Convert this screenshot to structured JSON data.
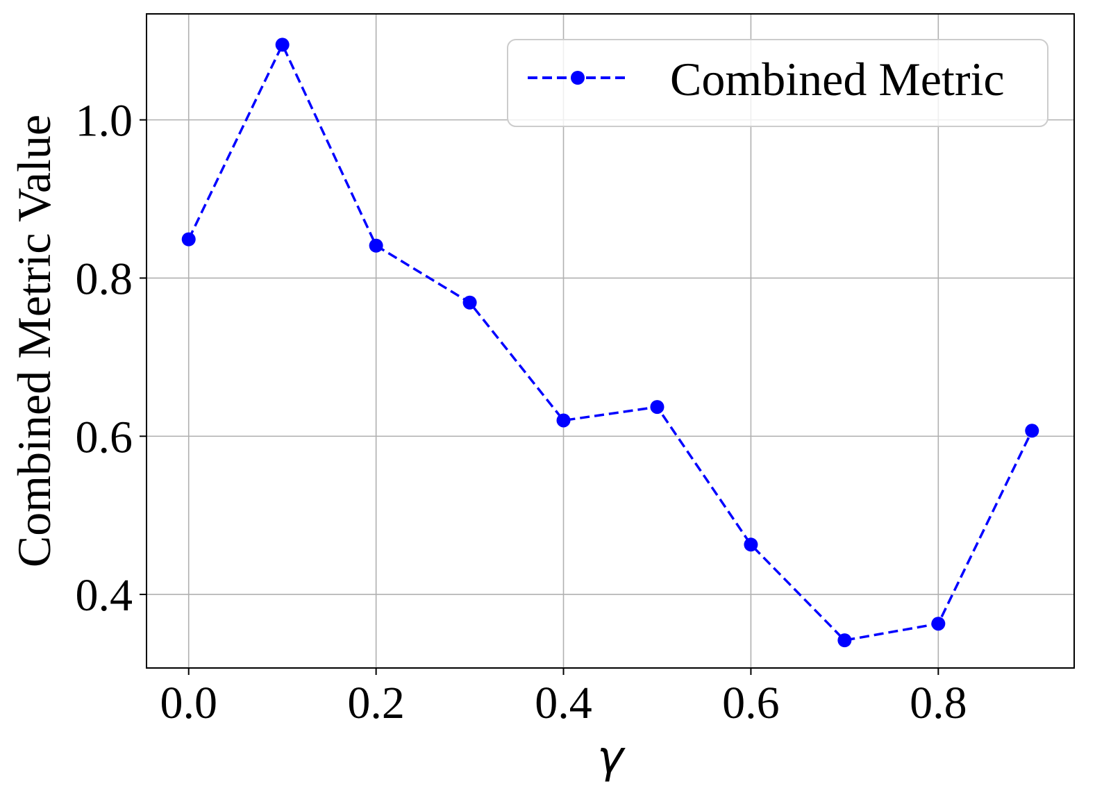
{
  "chart_data": {
    "type": "line",
    "xlabel": "γ",
    "ylabel": "Combined Metric Value",
    "xlim": [
      -0.045,
      0.945
    ],
    "ylim": [
      0.307,
      1.134
    ],
    "xticks": [
      "0.0",
      "0.2",
      "0.4",
      "0.6",
      "0.8"
    ],
    "xtick_values": [
      0.0,
      0.2,
      0.4,
      0.6,
      0.8
    ],
    "yticks": [
      "0.4",
      "0.6",
      "0.8",
      "1.0"
    ],
    "ytick_values": [
      0.4,
      0.6,
      0.8,
      1.0
    ],
    "grid": true,
    "legend_position": "top-right",
    "series": [
      {
        "name": "Combined Metric",
        "color": "#0000ff",
        "line_style": "dashed",
        "marker": "circle",
        "x": [
          0.0,
          0.1,
          0.2,
          0.3,
          0.4,
          0.5,
          0.6,
          0.7,
          0.8,
          0.9
        ],
        "y": [
          0.849,
          1.095,
          0.841,
          0.769,
          0.62,
          0.637,
          0.463,
          0.342,
          0.363,
          0.607
        ]
      }
    ]
  }
}
